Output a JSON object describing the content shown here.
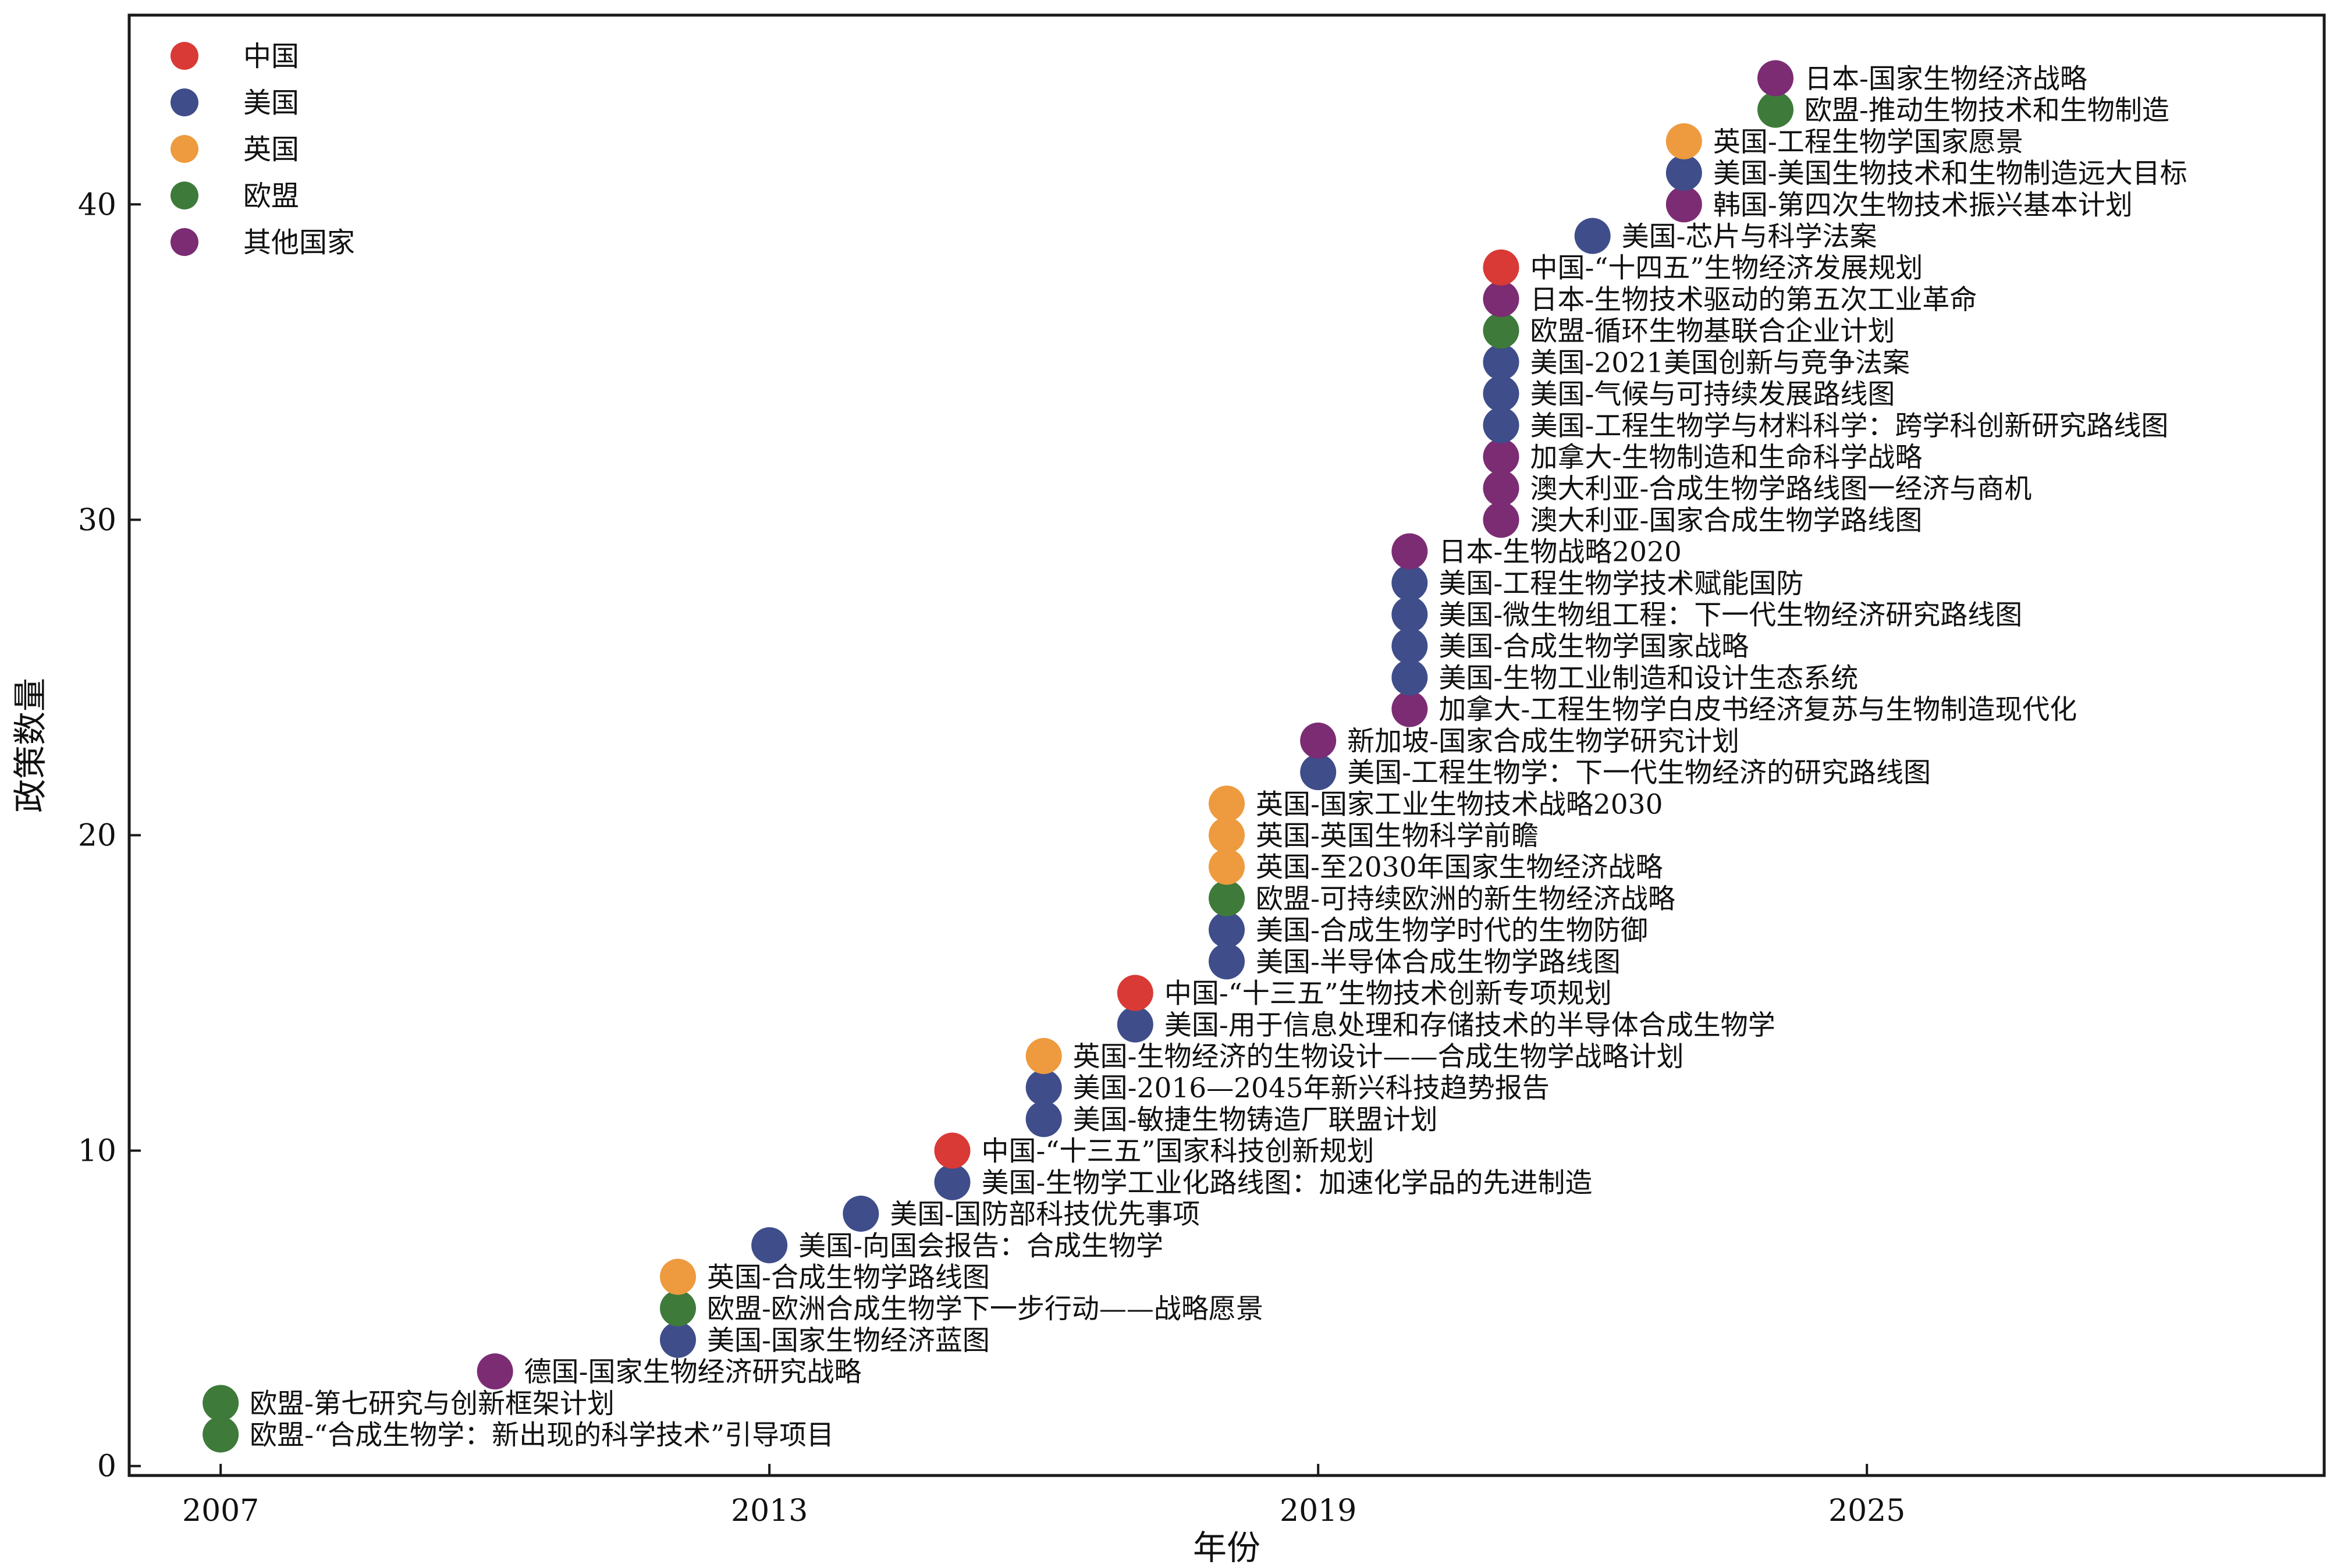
{
  "chart_data": {
    "type": "scatter",
    "xlabel": "年份",
    "ylabel": "政策数量",
    "xlim": [
      2006.0,
      2030.0
    ],
    "ylim": [
      -0.3,
      46.0
    ],
    "xticks": [
      2007,
      2013,
      2019,
      2025
    ],
    "yticks": [
      0,
      10,
      20,
      30,
      40
    ],
    "grid": false,
    "legend_position": "top-left",
    "colors": {
      "中国": "#d93a36",
      "美国": "#3f4d8a",
      "英国": "#ee9a3e",
      "欧盟": "#3e7a3a",
      "其他国家": "#7b2c73"
    },
    "legend": [
      "中国",
      "美国",
      "英国",
      "欧盟",
      "其他国家"
    ],
    "points": [
      {
        "x": 2007,
        "y": 1,
        "group": "欧盟",
        "label": "欧盟-“合成生物学：新出现的科学技术”引导项目"
      },
      {
        "x": 2007,
        "y": 2,
        "group": "欧盟",
        "label": "欧盟-第七研究与创新框架计划"
      },
      {
        "x": 2010,
        "y": 3,
        "group": "其他国家",
        "label": "德国-国家生物经济研究战略"
      },
      {
        "x": 2012,
        "y": 4,
        "group": "美国",
        "label": "美国-国家生物经济蓝图"
      },
      {
        "x": 2012,
        "y": 5,
        "group": "欧盟",
        "label": "欧盟-欧洲合成生物学下一步行动——战略愿景"
      },
      {
        "x": 2012,
        "y": 6,
        "group": "英国",
        "label": "英国-合成生物学路线图"
      },
      {
        "x": 2013,
        "y": 7,
        "group": "美国",
        "label": "美国-向国会报告：合成生物学"
      },
      {
        "x": 2014,
        "y": 8,
        "group": "美国",
        "label": "美国-国防部科技优先事项"
      },
      {
        "x": 2015,
        "y": 9,
        "group": "美国",
        "label": "美国-生物学工业化路线图：加速化学品的先进制造"
      },
      {
        "x": 2015,
        "y": 10,
        "group": "中国",
        "label": "中国-“十三五”国家科技创新规划"
      },
      {
        "x": 2016,
        "y": 11,
        "group": "美国",
        "label": "美国-敏捷生物铸造厂联盟计划"
      },
      {
        "x": 2016,
        "y": 12,
        "group": "美国",
        "label": "美国-2016—2045年新兴科技趋势报告"
      },
      {
        "x": 2016,
        "y": 13,
        "group": "英国",
        "label": "英国-生物经济的生物设计——合成生物学战略计划"
      },
      {
        "x": 2017,
        "y": 14,
        "group": "美国",
        "label": "美国-用于信息处理和存储技术的半导体合成生物学"
      },
      {
        "x": 2017,
        "y": 15,
        "group": "中国",
        "label": "中国-“十三五”生物技术创新专项规划"
      },
      {
        "x": 2018,
        "y": 16,
        "group": "美国",
        "label": "美国-半导体合成生物学路线图"
      },
      {
        "x": 2018,
        "y": 17,
        "group": "美国",
        "label": "美国-合成生物学时代的生物防御"
      },
      {
        "x": 2018,
        "y": 18,
        "group": "欧盟",
        "label": "欧盟-可持续欧洲的新生物经济战略"
      },
      {
        "x": 2018,
        "y": 19,
        "group": "英国",
        "label": "英国-至2030年国家生物经济战略"
      },
      {
        "x": 2018,
        "y": 20,
        "group": "英国",
        "label": "英国-英国生物科学前瞻"
      },
      {
        "x": 2018,
        "y": 21,
        "group": "英国",
        "label": "英国-国家工业生物技术战略2030"
      },
      {
        "x": 2019,
        "y": 22,
        "group": "美国",
        "label": "美国-工程生物学：下一代生物经济的研究路线图"
      },
      {
        "x": 2019,
        "y": 23,
        "group": "其他国家",
        "label": "新加坡-国家合成生物学研究计划"
      },
      {
        "x": 2020,
        "y": 24,
        "group": "其他国家",
        "label": "加拿大-工程生物学白皮书经济复苏与生物制造现代化"
      },
      {
        "x": 2020,
        "y": 25,
        "group": "美国",
        "label": "美国-生物工业制造和设计生态系统"
      },
      {
        "x": 2020,
        "y": 26,
        "group": "美国",
        "label": "美国-合成生物学国家战略"
      },
      {
        "x": 2020,
        "y": 27,
        "group": "美国",
        "label": "美国-微生物组工程：下一代生物经济研究路线图"
      },
      {
        "x": 2020,
        "y": 28,
        "group": "美国",
        "label": "美国-工程生物学技术赋能国防"
      },
      {
        "x": 2020,
        "y": 29,
        "group": "其他国家",
        "label": "日本-生物战略2020"
      },
      {
        "x": 2021,
        "y": 30,
        "group": "其他国家",
        "label": "澳大利亚-国家合成生物学路线图"
      },
      {
        "x": 2021,
        "y": 31,
        "group": "其他国家",
        "label": "澳大利亚-合成生物学路线图一经济与商机"
      },
      {
        "x": 2021,
        "y": 32,
        "group": "其他国家",
        "label": "加拿大-生物制造和生命科学战略"
      },
      {
        "x": 2021,
        "y": 33,
        "group": "美国",
        "label": "美国-工程生物学与材料科学：跨学科创新研究路线图"
      },
      {
        "x": 2021,
        "y": 34,
        "group": "美国",
        "label": "美国-气候与可持续发展路线图"
      },
      {
        "x": 2021,
        "y": 35,
        "group": "美国",
        "label": "美国-2021美国创新与竞争法案"
      },
      {
        "x": 2021,
        "y": 36,
        "group": "欧盟",
        "label": "欧盟-循环生物基联合企业计划"
      },
      {
        "x": 2021,
        "y": 37,
        "group": "其他国家",
        "label": "日本-生物技术驱动的第五次工业革命"
      },
      {
        "x": 2021,
        "y": 38,
        "group": "中国",
        "label": "中国-“十四五”生物经济发展规划"
      },
      {
        "x": 2022,
        "y": 39,
        "group": "美国",
        "label": "美国-芯片与科学法案"
      },
      {
        "x": 2023,
        "y": 40,
        "group": "其他国家",
        "label": "韩国-第四次生物技术振兴基本计划"
      },
      {
        "x": 2023,
        "y": 41,
        "group": "美国",
        "label": "美国-美国生物技术和生物制造远大目标"
      },
      {
        "x": 2023,
        "y": 42,
        "group": "英国",
        "label": "英国-工程生物学国家愿景"
      },
      {
        "x": 2024,
        "y": 43,
        "group": "欧盟",
        "label": "欧盟-推动生物技术和生物制造"
      },
      {
        "x": 2024,
        "y": 44,
        "group": "其他国家",
        "label": "日本-国家生物经济战略"
      }
    ]
  }
}
